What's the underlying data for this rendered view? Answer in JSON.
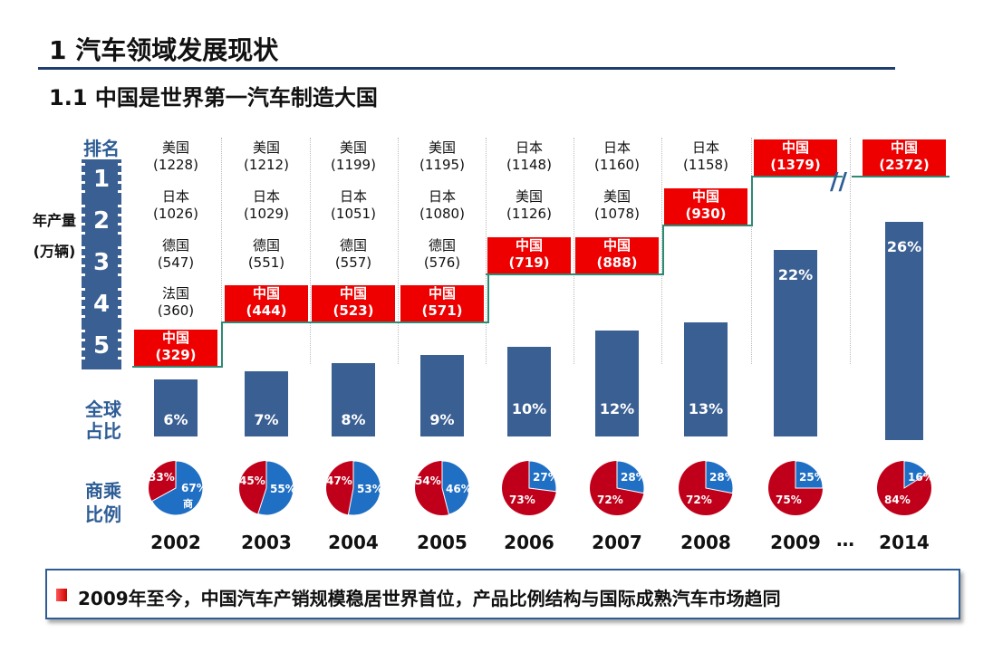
{
  "header": {
    "title": "1  汽车领域发展现状",
    "subtitle": "1.1  中国是世界第一汽车制造大国"
  },
  "side_labels": {
    "rank": "排名",
    "ranks": [
      "1",
      "2",
      "3",
      "4",
      "5"
    ],
    "production_line1": "年产量",
    "production_line2": "(万辆)",
    "share_line1": "全球",
    "share_line2": "占比",
    "ratio_line1": "商乘",
    "ratio_line2": "比例"
  },
  "colors": {
    "bar": "#3a5f93",
    "china": "#ee0000",
    "pie_red": "#c0001a",
    "pie_blue": "#1f6fc4",
    "accent": "#2e5d96"
  },
  "chart_data": {
    "type": "bar",
    "categories": [
      "2002",
      "2003",
      "2004",
      "2005",
      "2006",
      "2007",
      "2008",
      "2009",
      "2014"
    ],
    "ellipsis": "…",
    "global_share_labels": [
      "6%",
      "7%",
      "8%",
      "9%",
      "10%",
      "12%",
      "13%",
      "22%",
      "26%"
    ],
    "global_share_values": [
      6,
      7,
      8,
      9,
      10,
      12,
      13,
      22,
      26
    ],
    "rankings": [
      [
        [
          "美国",
          "(1228)"
        ],
        [
          "日本",
          "(1026)"
        ],
        [
          "德国",
          "(547)"
        ],
        [
          "法国",
          "(360)"
        ],
        [
          "中国",
          "(329)"
        ]
      ],
      [
        [
          "美国",
          "(1212)"
        ],
        [
          "日本",
          "(1029)"
        ],
        [
          "德国",
          "(551)"
        ],
        [
          "中国",
          "(444)"
        ]
      ],
      [
        [
          "美国",
          "(1199)"
        ],
        [
          "日本",
          "(1051)"
        ],
        [
          "德国",
          "(557)"
        ],
        [
          "中国",
          "(523)"
        ]
      ],
      [
        [
          "美国",
          "(1195)"
        ],
        [
          "日本",
          "(1080)"
        ],
        [
          "德国",
          "(576)"
        ],
        [
          "中国",
          "(571)"
        ]
      ],
      [
        [
          "日本",
          "(1148)"
        ],
        [
          "美国",
          "(1126)"
        ],
        [
          "中国",
          "(719)"
        ]
      ],
      [
        [
          "日本",
          "(1160)"
        ],
        [
          "美国",
          "(1078)"
        ],
        [
          "中国",
          "(888)"
        ]
      ],
      [
        [
          "日本",
          "(1158)"
        ],
        [
          "中国",
          "(930)"
        ]
      ],
      [
        [
          "中国",
          "(1379)"
        ]
      ],
      [
        [
          "中国",
          "(2372)"
        ]
      ]
    ],
    "china_rank": [
      5,
      4,
      4,
      4,
      3,
      3,
      2,
      1,
      1
    ],
    "passenger_share_labels": [
      "33%",
      "45%",
      "47%",
      "54%",
      "73%",
      "72%",
      "72%",
      "75%",
      "84%"
    ],
    "commercial_share_labels": [
      "67%",
      "55%",
      "53%",
      "46%",
      "27%",
      "28%",
      "28%",
      "25%",
      "16%"
    ],
    "passenger_share": [
      33,
      45,
      47,
      54,
      73,
      72,
      72,
      75,
      84
    ],
    "commercial_share": [
      67,
      55,
      53,
      46,
      27,
      28,
      28,
      25,
      16
    ],
    "commercial_tag_2002": "商",
    "ylim": [
      0,
      30
    ]
  },
  "footer": {
    "text": "2009年至今，中国汽车产销规模稳居世界首位，产品比例结构与国际成熟汽车市场趋同"
  }
}
